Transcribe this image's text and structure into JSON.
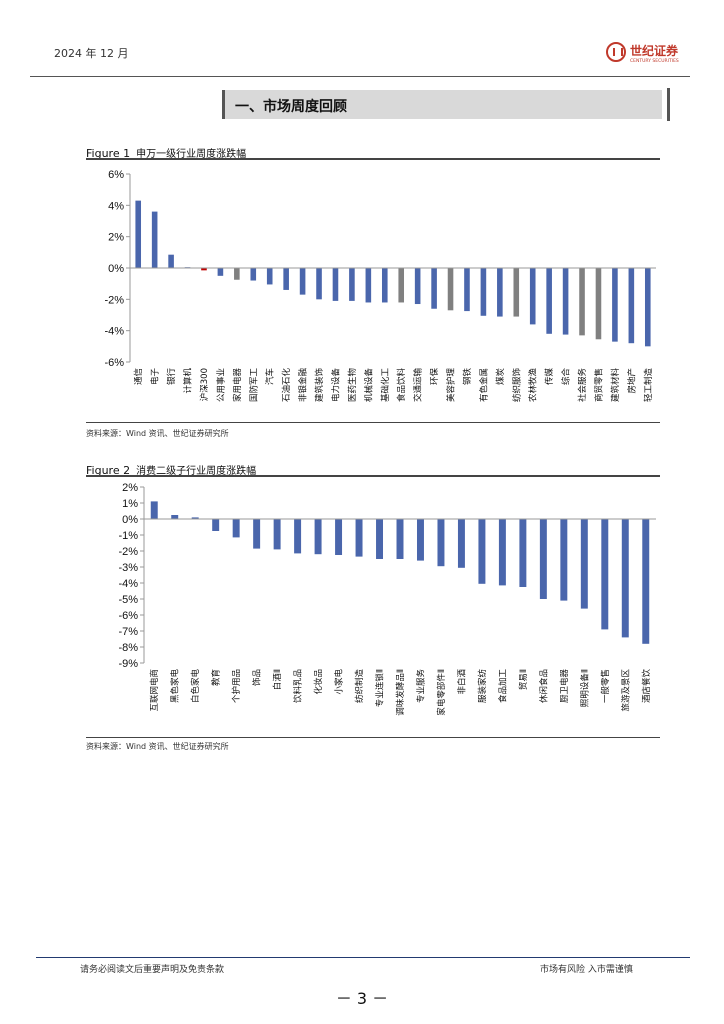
{
  "header": {
    "date": "2024 年 12 月",
    "logo_text": "世纪证券",
    "logo_sub": "CENTURY SECURITIES"
  },
  "section": {
    "title": "一、市场周度回顾"
  },
  "colors": {
    "bar": "#4a66ac",
    "gray": "#808080",
    "red": "#c00000",
    "axis": "#999999"
  },
  "figures": [
    {
      "label": "Figure 1",
      "desc": "申万一级行业周度涨跌幅",
      "source": "资料来源：Wind 资讯、世纪证券研究所"
    },
    {
      "label": "Figure 2",
      "desc": "消费二级子行业周度涨跌幅",
      "source": "资料来源：Wind 资讯、世纪证券研究所"
    }
  ],
  "chart_data": [
    {
      "type": "bar",
      "ylim": [
        -6,
        6
      ],
      "yticks": [
        6,
        4,
        2,
        0,
        -2,
        -4,
        -6
      ],
      "ytick_format": "%",
      "categories": [
        "通信",
        "电子",
        "银行",
        "计算机",
        "沪深300",
        "公用事业",
        "家用电器",
        "国防军工",
        "汽车",
        "石油石化",
        "非银金融",
        "建筑装饰",
        "电力设备",
        "医药生物",
        "机械设备",
        "基础化工",
        "食品饮料",
        "交通运输",
        "环保",
        "美容护理",
        "钢铁",
        "有色金属",
        "煤炭",
        "纺织服饰",
        "农林牧渔",
        "传媒",
        "综合",
        "社会服务",
        "商贸零售",
        "建筑材料",
        "房地产",
        "轻工制造"
      ],
      "values": [
        4.3,
        3.6,
        0.85,
        0.05,
        -0.15,
        -0.5,
        -0.75,
        -0.8,
        -1.05,
        -1.4,
        -1.7,
        -2.0,
        -2.1,
        -2.1,
        -2.2,
        -2.2,
        -2.2,
        -2.3,
        -2.6,
        -2.7,
        -2.75,
        -3.05,
        -3.1,
        -3.1,
        -3.6,
        -4.2,
        -4.25,
        -4.3,
        -4.55,
        -4.7,
        -4.8,
        -5.0
      ],
      "highlight": {
        "沪深300": "red",
        "家用电器": "gray",
        "食品饮料": "gray",
        "美容护理": "gray",
        "纺织服饰": "gray",
        "社会服务": "gray",
        "商贸零售": "gray"
      }
    },
    {
      "type": "bar",
      "ylim": [
        -9,
        2
      ],
      "yticks": [
        2,
        1,
        0,
        -1,
        -2,
        -3,
        -4,
        -5,
        -6,
        -7,
        -8,
        -9
      ],
      "ytick_format": "%",
      "categories": [
        "互联网电商",
        "黑色家电",
        "白色家电",
        "教育",
        "个护用品",
        "饰品",
        "白酒Ⅱ",
        "饮料乳品",
        "化妆品",
        "小家电",
        "纺织制造",
        "专业连锁Ⅱ",
        "调味发酵品Ⅱ",
        "专业服务",
        "家电零部件Ⅱ",
        "非白酒",
        "服装家纺",
        "食品加工",
        "贸易Ⅱ",
        "休闲食品",
        "厨卫电器",
        "照明设备Ⅱ",
        "一般零售",
        "旅游及景区",
        "酒店餐饮"
      ],
      "values": [
        1.1,
        0.25,
        0.1,
        -0.75,
        -1.15,
        -1.85,
        -1.9,
        -2.15,
        -2.2,
        -2.25,
        -2.35,
        -2.5,
        -2.5,
        -2.6,
        -2.95,
        -3.05,
        -4.05,
        -4.15,
        -4.25,
        -5.0,
        -5.1,
        -5.6,
        -6.9,
        -7.4,
        -7.8
      ],
      "highlight": {}
    }
  ],
  "footer": {
    "left": "请务必阅读文后重要声明及免责条款",
    "right": "市场有风险 入市需谨慎",
    "page": "－ 3 －"
  }
}
